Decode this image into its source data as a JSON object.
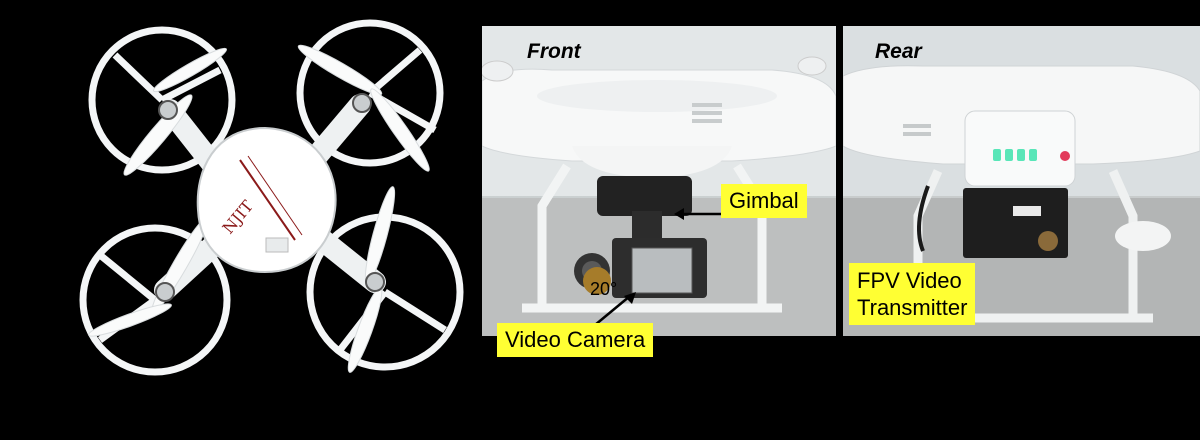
{
  "views": {
    "front": "Front",
    "rear": "Rear"
  },
  "callouts": {
    "gimbal": "Gimbal",
    "camera": "Video Camera",
    "fpv_line1": "FPV Video",
    "fpv_line2": "Transmitter"
  },
  "annotations": {
    "angle": "20°"
  },
  "drone": {
    "body_logo": "NJIT"
  },
  "colors": {
    "callout_bg": "#ffff33",
    "background": "#000000",
    "led": "#59e6b8"
  }
}
